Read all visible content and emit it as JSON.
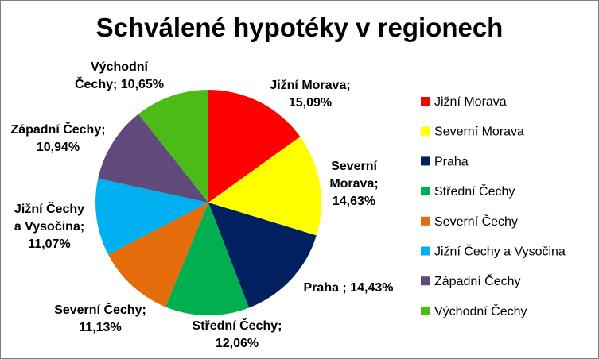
{
  "chart_data": {
    "type": "pie",
    "title": "Schválené hypotéky v regionech",
    "categories": [
      "Jižní Morava",
      "Severní Morava",
      "Praha",
      "Střední Čechy",
      "Severní Čechy",
      "Jižní Čechy a Vysočina",
      "Západní Čechy",
      "Východní Čechy"
    ],
    "values": [
      15.09,
      14.63,
      14.43,
      12.06,
      11.13,
      11.07,
      10.94,
      10.65
    ],
    "colors": [
      "#ff0000",
      "#ffff00",
      "#002060",
      "#00b050",
      "#e46c0a",
      "#00b0f0",
      "#604a7b",
      "#4cbb17"
    ],
    "data_labels": [
      [
        "Jižní Morava;",
        "15,09%"
      ],
      [
        "Severní",
        "Morava;",
        "14,63%"
      ],
      [
        "Praha ; 14,43%"
      ],
      [
        "Střední Čechy;",
        "12,06%"
      ],
      [
        "Severní Čechy;",
        "11,13%"
      ],
      [
        "Jižní Čechy",
        "a Vysočina;",
        "11,07%"
      ],
      [
        "Západní Čechy;",
        "10,94%"
      ],
      [
        "Východní",
        "Čechy; 10,65%"
      ]
    ],
    "legend": {
      "position": "right",
      "entries": [
        "Jižní Morava",
        "Severní Morava",
        "Praha",
        "Střední Čechy",
        "Severní Čechy",
        "Jižní Čechy a Vysočina",
        "Západní Čechy",
        "Východní Čechy"
      ]
    }
  }
}
